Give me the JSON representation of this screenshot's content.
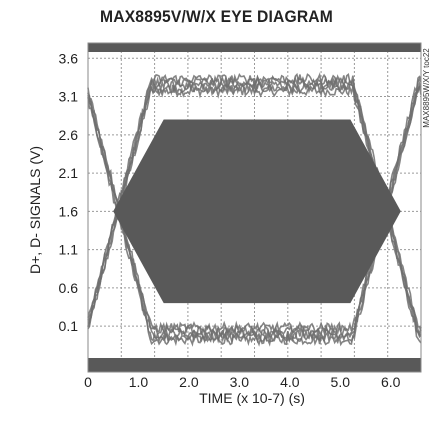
{
  "chart_data": {
    "type": "line",
    "title": "MAX8895V/W/X EYE DIAGRAM",
    "xlabel": "TIME (x 10-7) (s)",
    "ylabel": "D+, D- SIGNALS (V)",
    "side_note": "MAX8895W/X/Y toc22",
    "xlim": [
      0,
      6.6
    ],
    "ylim": [
      -0.5,
      3.8
    ],
    "x_ticks": [
      {
        "value": 0,
        "label": "0"
      },
      {
        "value": 1.0,
        "label": "1.0"
      },
      {
        "value": 2.0,
        "label": "2.0"
      },
      {
        "value": 3.0,
        "label": "3.0"
      },
      {
        "value": 4.0,
        "label": "4.0"
      },
      {
        "value": 5.0,
        "label": "5.0"
      },
      {
        "value": 6.0,
        "label": "6.0"
      }
    ],
    "y_ticks": [
      {
        "value": 3.6,
        "label": "3.6"
      },
      {
        "value": 3.1,
        "label": "3.1"
      },
      {
        "value": 2.6,
        "label": "2.6"
      },
      {
        "value": 2.1,
        "label": "2.1"
      },
      {
        "value": 1.6,
        "label": "1.6"
      },
      {
        "value": 1.1,
        "label": "1.1"
      },
      {
        "value": 0.6,
        "label": "0.6"
      },
      {
        "value": 0.1,
        "label": "0.1"
      }
    ],
    "grid": true,
    "eye_mask": {
      "x": [
        0.5,
        1.5,
        5.2,
        6.2,
        5.2,
        1.5,
        0.5
      ],
      "y": [
        1.6,
        2.8,
        2.8,
        1.6,
        0.4,
        0.4,
        1.6
      ]
    },
    "high_level": 3.25,
    "low_level": 0.0,
    "crossings": [
      0.0,
      6.5
    ],
    "colors": {
      "trace": "#6f6f6f",
      "mask": "#595959",
      "band": "#595959",
      "grid": "#9a9a9a",
      "frame": "#8a8a8a"
    }
  }
}
